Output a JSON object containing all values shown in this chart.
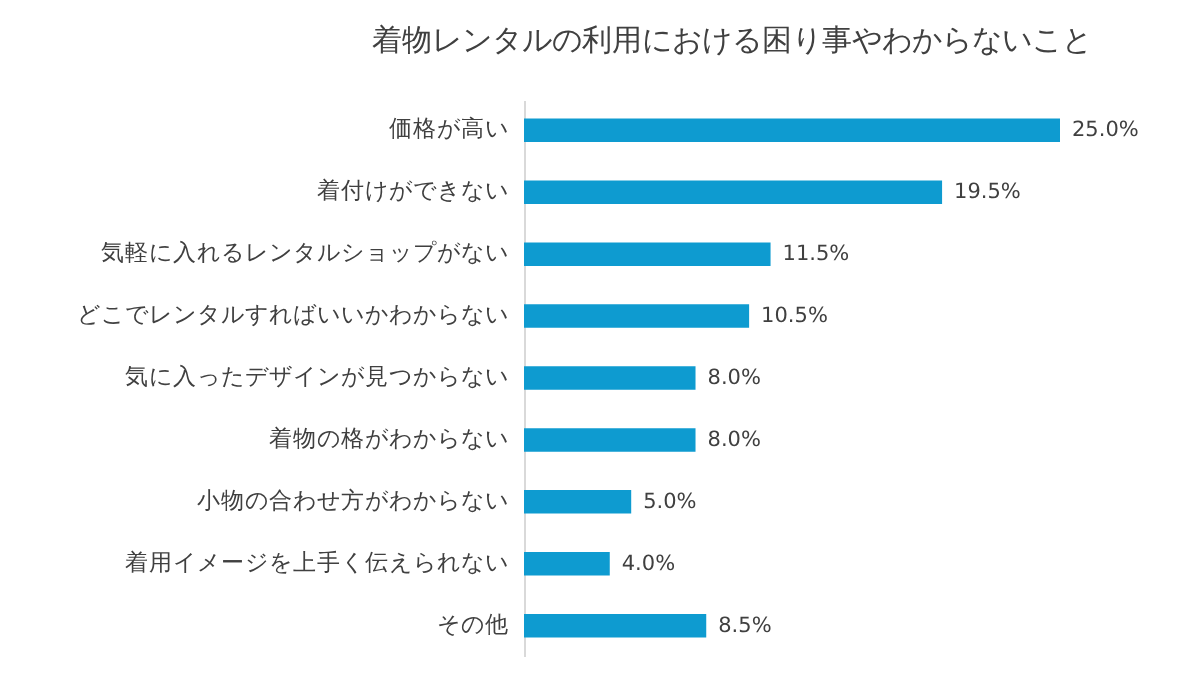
{
  "chart_data": {
    "type": "bar",
    "orientation": "horizontal",
    "title": "着物レンタルの利用における困り事やわからないこと",
    "categories": [
      "価格が高い",
      "着付けができない",
      "気軽に入れるレンタルショップがない",
      "どこでレンタルすればいいかわからない",
      "気に入ったデザインが見つからない",
      "着物の格がわからない",
      "小物の合わせ方がわからない",
      "着用イメージを上手く伝えられない",
      "その他"
    ],
    "values": [
      25.0,
      19.5,
      11.5,
      10.5,
      8.0,
      8.0,
      5.0,
      4.0,
      8.5
    ],
    "value_labels": [
      "25.0%",
      "19.5%",
      "11.5%",
      "10.5%",
      "8.0%",
      "8.0%",
      "5.0%",
      "4.0%",
      "8.5%"
    ],
    "color": "#0e9bd0"
  }
}
